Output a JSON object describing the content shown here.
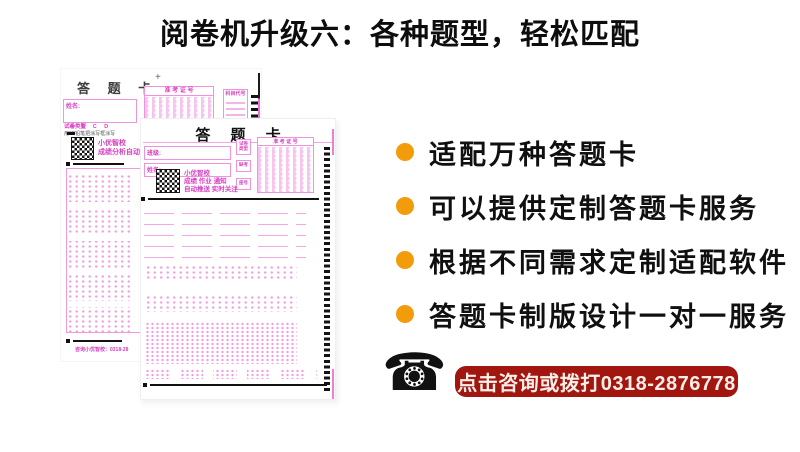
{
  "title": "阅卷机升级六：各种题型，轻松匹配",
  "features": [
    {
      "label": "适配万种答题卡"
    },
    {
      "label": "可以提供定制答题卡服务"
    },
    {
      "label": "根据不同需求定制适配软件"
    },
    {
      "label": "答题卡制版设计一对一服务"
    }
  ],
  "cta": {
    "phone_icon": "☎",
    "label": "点击咨询或拨打0318-2876778"
  },
  "colors": {
    "accent_orange": "#F29C0C",
    "banner_red": "#A21610",
    "card_magenta": "#E85FD0"
  },
  "answer_sheet_back": {
    "title": "答 题 卡",
    "plus_mark": "+",
    "name_label": "姓名:",
    "admission_no_header": "准 考 证 号",
    "subject_code_header": "科目代号",
    "paper_type_label": "试卷类型",
    "paper_type_options": "A B C D",
    "pencil_note": "用2B铅笔把涂写框涂写",
    "qr_caption_line1": "小优智校",
    "qr_caption_line2": "成绩分析自动推送",
    "footer_note": "咨询小优智校：0318-28"
  },
  "answer_sheet_front": {
    "title": "答 题 卡",
    "class_label": "班级:",
    "name_label": "姓名:",
    "paper_type_label": "试卷类型",
    "absent_label": "缺考",
    "seat_label": "座号",
    "admission_no_header": "准 考 证 号",
    "qr_caption_line1": "小优智校",
    "qr_caption_line2": "成绩 作业 通知",
    "qr_caption_line3": "自动推送 实时关注"
  }
}
